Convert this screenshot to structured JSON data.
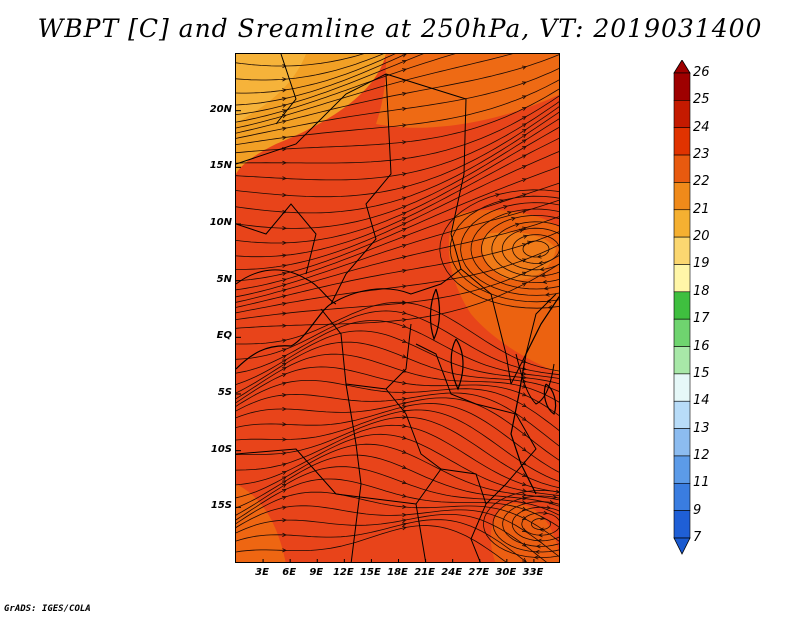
{
  "title": "WBPT [C] and Sreamline at 250hPa, VT: 2019031400",
  "credit": "GrADS: IGES/COLA",
  "map": {
    "lon_range": [
      0,
      36
    ],
    "lat_range": [
      -20,
      25
    ],
    "x_tick_labels": [
      "3E",
      "6E",
      "9E",
      "12E",
      "15E",
      "18E",
      "21E",
      "24E",
      "27E",
      "30E",
      "33E"
    ],
    "y_tick_labels": [
      "20N",
      "15N",
      "10N",
      "5N",
      "EQ",
      "5S",
      "10S",
      "15S"
    ],
    "fill_dominant_color": "#e8441a",
    "fill_north_color": "#f08a1a"
  },
  "colorbar": {
    "labels": [
      "26",
      "25",
      "24",
      "23",
      "22",
      "21",
      "20",
      "19",
      "18",
      "17",
      "16",
      "15",
      "14",
      "13",
      "12",
      "11",
      "9",
      "7"
    ],
    "colors": [
      "#9e0000",
      "#c41a00",
      "#e03300",
      "#e85a0f",
      "#f08a1a",
      "#f5b031",
      "#fbd770",
      "#fff6a8",
      "#3fbf3f",
      "#6fd46f",
      "#a8e8a8",
      "#e6f8f8",
      "#b8dcf8",
      "#8cbcf0",
      "#5c9be8",
      "#3a7de0",
      "#1f5fd6"
    ]
  }
}
